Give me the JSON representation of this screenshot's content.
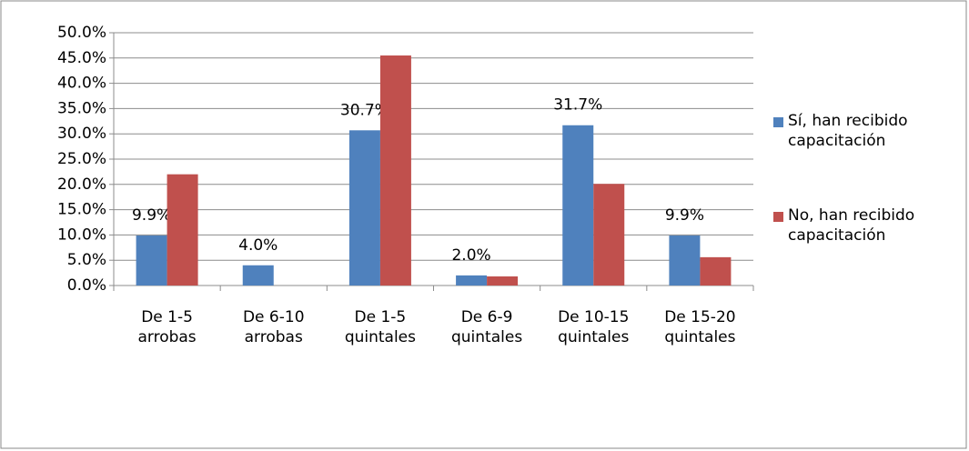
{
  "chart_data": {
    "type": "bar",
    "categories": [
      "De 1-5 arrobas",
      "De 6-10 arrobas",
      "De 1-5 quintales",
      "De 6-9 quintales",
      "De 10-15 quintales",
      "De 15-20 quintales"
    ],
    "series": [
      {
        "name": "Sí, han recibido capacitación",
        "color": "#4f81bd",
        "values": [
          9.9,
          4.0,
          30.7,
          2.0,
          31.7,
          9.9
        ],
        "value_labels": [
          "9.9%",
          "4.0%",
          "30.7%",
          "2.0%",
          "31.7%",
          "9.9%"
        ]
      },
      {
        "name": "No, han recibido capacitación",
        "color": "#c0504d",
        "values": [
          22.0,
          0,
          45.5,
          1.8,
          20.1,
          5.6
        ]
      }
    ],
    "ylim": [
      0,
      50
    ],
    "yticks": [
      {
        "value": 0,
        "label": "0.0%"
      },
      {
        "value": 5,
        "label": "5.0%"
      },
      {
        "value": 10,
        "label": "10.0%"
      },
      {
        "value": 15,
        "label": "15.0%"
      },
      {
        "value": 20,
        "label": "20.0%"
      },
      {
        "value": 25,
        "label": "25.0%"
      },
      {
        "value": 30,
        "label": "30.0%"
      },
      {
        "value": 35,
        "label": "35.0%"
      },
      {
        "value": 40,
        "label": "40.0%"
      },
      {
        "value": 45,
        "label": "45.0%"
      },
      {
        "value": 50,
        "label": "50.0%"
      }
    ],
    "grid": true,
    "legend": "right"
  }
}
